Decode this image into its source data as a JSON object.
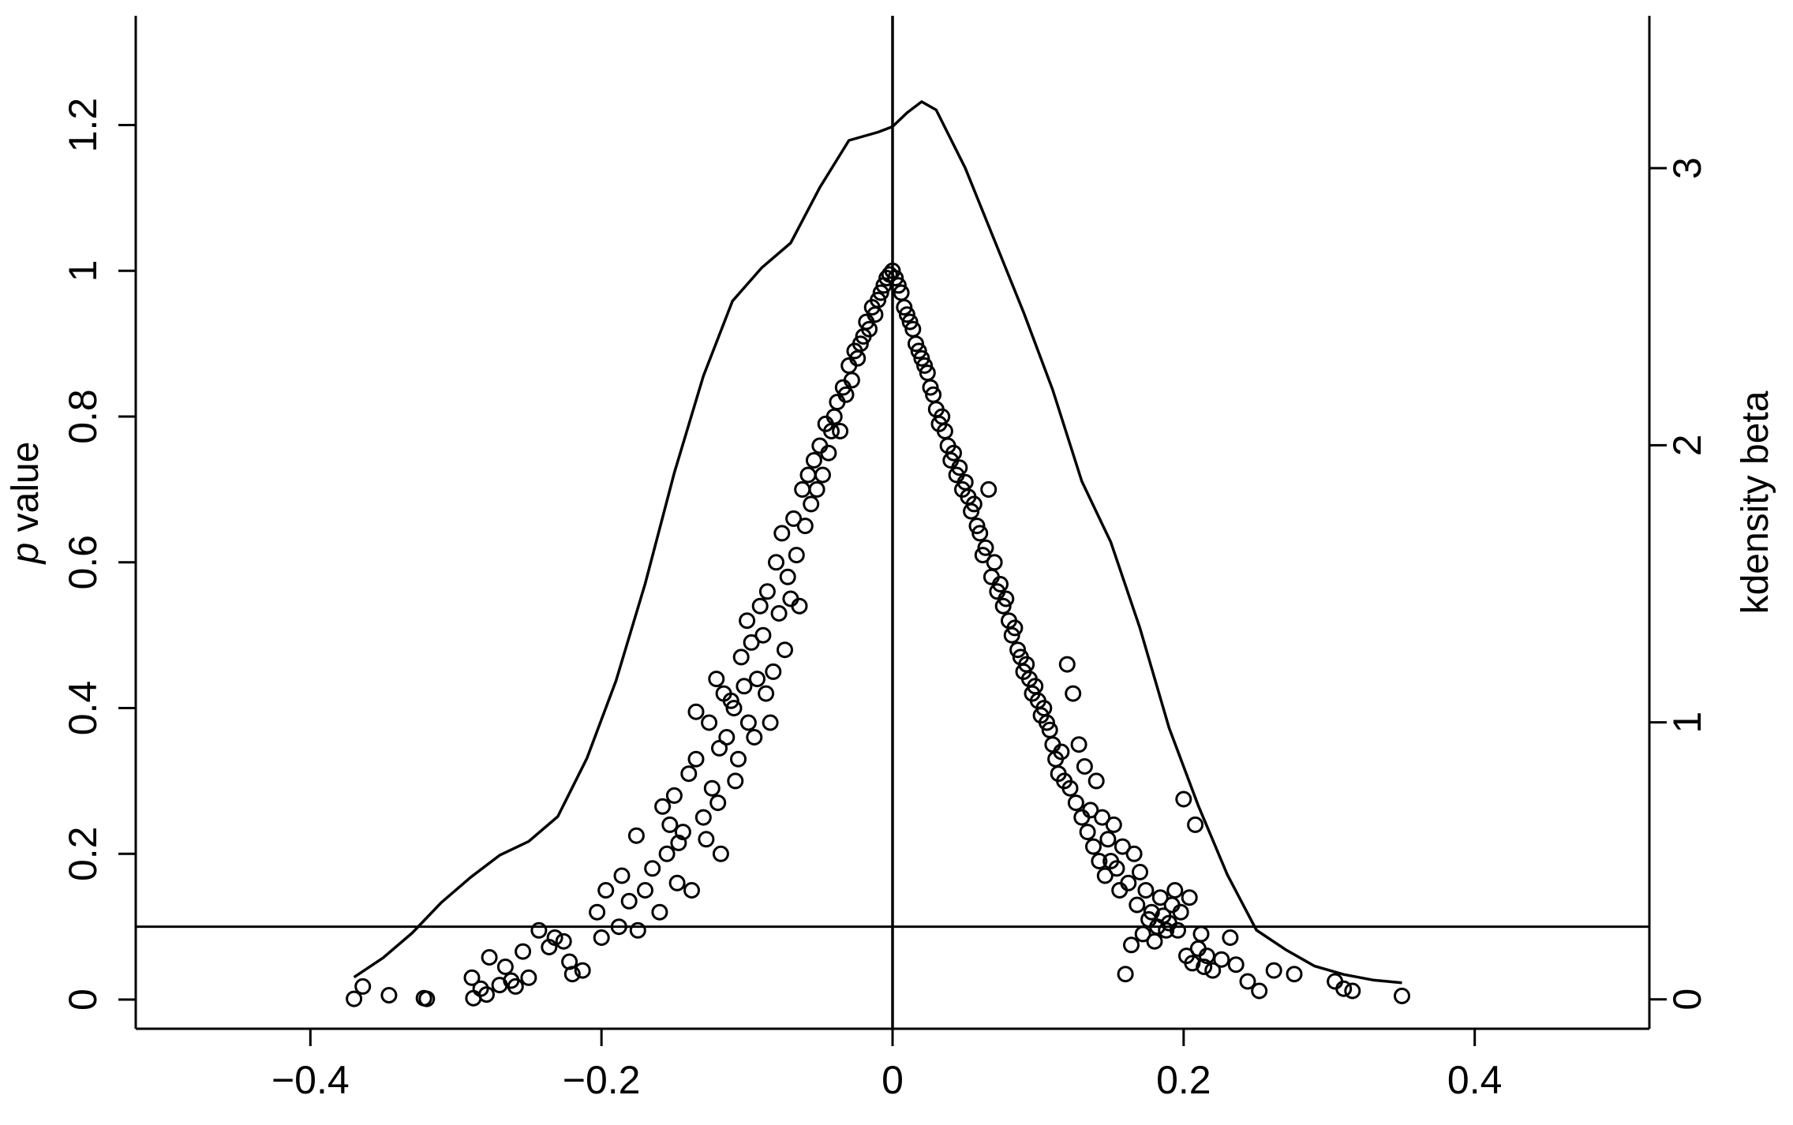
{
  "chart_data": {
    "type": "scatter",
    "title": "",
    "xlabel": "",
    "ylabel_italic": "p",
    "ylabel_rest": " value",
    "y2label": "kdensity beta",
    "xlim": [
      -0.52,
      0.52
    ],
    "ylim": [
      -0.04,
      1.35
    ],
    "y2lim": [
      -0.106,
      3.55
    ],
    "x_ticks": [
      {
        "value": -0.4,
        "label": "−0.4"
      },
      {
        "value": -0.2,
        "label": "−0.2"
      },
      {
        "value": 0,
        "label": "0"
      },
      {
        "value": 0.2,
        "label": "0.2"
      },
      {
        "value": 0.4,
        "label": "0.4"
      }
    ],
    "y_ticks": [
      {
        "value": 0,
        "label": "0"
      },
      {
        "value": 0.2,
        "label": "0.2"
      },
      {
        "value": 0.4,
        "label": "0.4"
      },
      {
        "value": 0.6,
        "label": "0.6"
      },
      {
        "value": 0.8,
        "label": "0.8"
      },
      {
        "value": 1,
        "label": "1"
      },
      {
        "value": 1.2,
        "label": "1.2"
      }
    ],
    "y2_ticks": [
      {
        "value": 0,
        "label": "0"
      },
      {
        "value": 1,
        "label": "1"
      },
      {
        "value": 2,
        "label": "2"
      },
      {
        "value": 3,
        "label": "3"
      }
    ],
    "reference_lines": {
      "vertical_x": 0,
      "horizontal_y": 0.1
    },
    "grid": false,
    "legend": "none",
    "colors": {
      "ink": "#000000",
      "background": "#ffffff"
    },
    "series": [
      {
        "type": "scatter",
        "axis": "left",
        "marker": "hollow-circle",
        "points": [
          [
            -0.37,
            0.001
          ],
          [
            -0.364,
            0.018
          ],
          [
            -0.346,
            0.006
          ],
          [
            -0.322,
            0.002
          ],
          [
            -0.32,
            0.001
          ],
          [
            -0.289,
            0.03
          ],
          [
            -0.288,
            0.002
          ],
          [
            -0.283,
            0.015
          ],
          [
            -0.279,
            0.007
          ],
          [
            -0.277,
            0.058
          ],
          [
            -0.27,
            0.02
          ],
          [
            -0.266,
            0.045
          ],
          [
            -0.262,
            0.026
          ],
          [
            -0.259,
            0.018
          ],
          [
            -0.254,
            0.066
          ],
          [
            -0.25,
            0.03
          ],
          [
            -0.243,
            0.095
          ],
          [
            -0.236,
            0.072
          ],
          [
            -0.232,
            0.085
          ],
          [
            -0.226,
            0.08
          ],
          [
            -0.222,
            0.052
          ],
          [
            -0.22,
            0.035
          ],
          [
            -0.213,
            0.04
          ],
          [
            -0.203,
            0.12
          ],
          [
            -0.2,
            0.085
          ],
          [
            -0.197,
            0.15
          ],
          [
            -0.188,
            0.1
          ],
          [
            -0.186,
            0.17
          ],
          [
            -0.181,
            0.135
          ],
          [
            -0.175,
            0.095
          ],
          [
            -0.176,
            0.225
          ],
          [
            -0.17,
            0.15
          ],
          [
            -0.165,
            0.18
          ],
          [
            -0.16,
            0.12
          ],
          [
            -0.158,
            0.265
          ],
          [
            -0.155,
            0.2
          ],
          [
            -0.153,
            0.24
          ],
          [
            -0.15,
            0.28
          ],
          [
            -0.148,
            0.16
          ],
          [
            -0.147,
            0.215
          ],
          [
            -0.144,
            0.23
          ],
          [
            -0.14,
            0.31
          ],
          [
            -0.138,
            0.15
          ],
          [
            -0.135,
            0.33
          ],
          [
            -0.135,
            0.395
          ],
          [
            -0.13,
            0.25
          ],
          [
            -0.128,
            0.22
          ],
          [
            -0.126,
            0.38
          ],
          [
            -0.124,
            0.29
          ],
          [
            -0.121,
            0.44
          ],
          [
            -0.12,
            0.27
          ],
          [
            -0.119,
            0.345
          ],
          [
            -0.118,
            0.2
          ],
          [
            -0.116,
            0.42
          ],
          [
            -0.114,
            0.36
          ],
          [
            -0.111,
            0.41
          ],
          [
            -0.109,
            0.4
          ],
          [
            -0.108,
            0.3
          ],
          [
            -0.106,
            0.33
          ],
          [
            -0.104,
            0.47
          ],
          [
            -0.102,
            0.43
          ],
          [
            -0.1,
            0.52
          ],
          [
            -0.099,
            0.38
          ],
          [
            -0.097,
            0.49
          ],
          [
            -0.095,
            0.36
          ],
          [
            -0.093,
            0.44
          ],
          [
            -0.091,
            0.54
          ],
          [
            -0.089,
            0.5
          ],
          [
            -0.087,
            0.42
          ],
          [
            -0.086,
            0.56
          ],
          [
            -0.084,
            0.38
          ],
          [
            -0.082,
            0.45
          ],
          [
            -0.08,
            0.6
          ],
          [
            -0.078,
            0.53
          ],
          [
            -0.076,
            0.64
          ],
          [
            -0.074,
            0.48
          ],
          [
            -0.072,
            0.58
          ],
          [
            -0.07,
            0.55
          ],
          [
            -0.068,
            0.66
          ],
          [
            -0.066,
            0.61
          ],
          [
            -0.064,
            0.54
          ],
          [
            -0.062,
            0.7
          ],
          [
            -0.06,
            0.65
          ],
          [
            -0.058,
            0.72
          ],
          [
            -0.056,
            0.68
          ],
          [
            -0.054,
            0.74
          ],
          [
            -0.052,
            0.7
          ],
          [
            -0.05,
            0.76
          ],
          [
            -0.048,
            0.72
          ],
          [
            -0.046,
            0.79
          ],
          [
            -0.044,
            0.75
          ],
          [
            -0.042,
            0.78
          ],
          [
            -0.04,
            0.8
          ],
          [
            -0.038,
            0.82
          ],
          [
            -0.036,
            0.78
          ],
          [
            -0.034,
            0.84
          ],
          [
            -0.032,
            0.83
          ],
          [
            -0.03,
            0.87
          ],
          [
            -0.028,
            0.85
          ],
          [
            -0.026,
            0.89
          ],
          [
            -0.024,
            0.88
          ],
          [
            -0.022,
            0.9
          ],
          [
            -0.02,
            0.91
          ],
          [
            -0.018,
            0.93
          ],
          [
            -0.016,
            0.92
          ],
          [
            -0.014,
            0.95
          ],
          [
            -0.012,
            0.94
          ],
          [
            -0.01,
            0.96
          ],
          [
            -0.008,
            0.97
          ],
          [
            -0.006,
            0.98
          ],
          [
            -0.004,
            0.99
          ],
          [
            -0.002,
            0.995
          ],
          [
            0.0,
            1.0
          ],
          [
            0.002,
            0.99
          ],
          [
            0.004,
            0.98
          ],
          [
            0.006,
            0.97
          ],
          [
            0.008,
            0.95
          ],
          [
            0.01,
            0.94
          ],
          [
            0.012,
            0.93
          ],
          [
            0.014,
            0.92
          ],
          [
            0.016,
            0.9
          ],
          [
            0.018,
            0.89
          ],
          [
            0.02,
            0.88
          ],
          [
            0.022,
            0.87
          ],
          [
            0.024,
            0.86
          ],
          [
            0.026,
            0.84
          ],
          [
            0.028,
            0.83
          ],
          [
            0.03,
            0.81
          ],
          [
            0.032,
            0.79
          ],
          [
            0.034,
            0.8
          ],
          [
            0.036,
            0.78
          ],
          [
            0.038,
            0.76
          ],
          [
            0.04,
            0.74
          ],
          [
            0.042,
            0.75
          ],
          [
            0.044,
            0.72
          ],
          [
            0.046,
            0.73
          ],
          [
            0.048,
            0.7
          ],
          [
            0.05,
            0.71
          ],
          [
            0.052,
            0.69
          ],
          [
            0.054,
            0.67
          ],
          [
            0.056,
            0.68
          ],
          [
            0.058,
            0.65
          ],
          [
            0.06,
            0.64
          ],
          [
            0.062,
            0.61
          ],
          [
            0.064,
            0.62
          ],
          [
            0.066,
            0.7
          ],
          [
            0.068,
            0.58
          ],
          [
            0.07,
            0.6
          ],
          [
            0.072,
            0.56
          ],
          [
            0.074,
            0.57
          ],
          [
            0.076,
            0.54
          ],
          [
            0.078,
            0.55
          ],
          [
            0.08,
            0.52
          ],
          [
            0.082,
            0.5
          ],
          [
            0.084,
            0.51
          ],
          [
            0.086,
            0.48
          ],
          [
            0.088,
            0.47
          ],
          [
            0.09,
            0.45
          ],
          [
            0.092,
            0.46
          ],
          [
            0.094,
            0.44
          ],
          [
            0.096,
            0.42
          ],
          [
            0.098,
            0.43
          ],
          [
            0.1,
            0.41
          ],
          [
            0.102,
            0.39
          ],
          [
            0.104,
            0.4
          ],
          [
            0.106,
            0.38
          ],
          [
            0.108,
            0.37
          ],
          [
            0.11,
            0.35
          ],
          [
            0.112,
            0.33
          ],
          [
            0.114,
            0.31
          ],
          [
            0.116,
            0.34
          ],
          [
            0.118,
            0.3
          ],
          [
            0.12,
            0.46
          ],
          [
            0.122,
            0.29
          ],
          [
            0.124,
            0.42
          ],
          [
            0.126,
            0.27
          ],
          [
            0.128,
            0.35
          ],
          [
            0.13,
            0.25
          ],
          [
            0.132,
            0.32
          ],
          [
            0.134,
            0.23
          ],
          [
            0.136,
            0.26
          ],
          [
            0.138,
            0.21
          ],
          [
            0.14,
            0.3
          ],
          [
            0.142,
            0.19
          ],
          [
            0.144,
            0.25
          ],
          [
            0.146,
            0.17
          ],
          [
            0.148,
            0.22
          ],
          [
            0.15,
            0.19
          ],
          [
            0.152,
            0.24
          ],
          [
            0.154,
            0.18
          ],
          [
            0.156,
            0.15
          ],
          [
            0.158,
            0.21
          ],
          [
            0.16,
            0.035
          ],
          [
            0.162,
            0.16
          ],
          [
            0.164,
            0.075
          ],
          [
            0.166,
            0.2
          ],
          [
            0.168,
            0.13
          ],
          [
            0.17,
            0.175
          ],
          [
            0.172,
            0.09
          ],
          [
            0.174,
            0.15
          ],
          [
            0.176,
            0.11
          ],
          [
            0.178,
            0.12
          ],
          [
            0.18,
            0.08
          ],
          [
            0.182,
            0.1
          ],
          [
            0.184,
            0.14
          ],
          [
            0.186,
            0.115
          ],
          [
            0.188,
            0.095
          ],
          [
            0.19,
            0.105
          ],
          [
            0.192,
            0.13
          ],
          [
            0.194,
            0.15
          ],
          [
            0.196,
            0.095
          ],
          [
            0.198,
            0.12
          ],
          [
            0.2,
            0.275
          ],
          [
            0.202,
            0.06
          ],
          [
            0.204,
            0.14
          ],
          [
            0.206,
            0.05
          ],
          [
            0.208,
            0.24
          ],
          [
            0.21,
            0.07
          ],
          [
            0.212,
            0.09
          ],
          [
            0.214,
            0.045
          ],
          [
            0.216,
            0.06
          ],
          [
            0.22,
            0.04
          ],
          [
            0.226,
            0.055
          ],
          [
            0.232,
            0.085
          ],
          [
            0.236,
            0.048
          ],
          [
            0.244,
            0.025
          ],
          [
            0.252,
            0.012
          ],
          [
            0.262,
            0.04
          ],
          [
            0.276,
            0.035
          ],
          [
            0.304,
            0.025
          ],
          [
            0.31,
            0.015
          ],
          [
            0.316,
            0.012
          ],
          [
            0.35,
            0.005
          ]
        ]
      },
      {
        "type": "line",
        "axis": "right",
        "name": "",
        "x": [
          -0.37,
          -0.35,
          -0.33,
          -0.31,
          -0.29,
          -0.27,
          -0.25,
          -0.23,
          -0.21,
          -0.19,
          -0.17,
          -0.15,
          -0.13,
          -0.11,
          -0.09,
          -0.07,
          -0.05,
          -0.03,
          -0.01,
          0.0,
          0.01,
          0.02,
          0.03,
          0.05,
          0.07,
          0.09,
          0.11,
          0.13,
          0.15,
          0.17,
          0.19,
          0.21,
          0.23,
          0.25,
          0.27,
          0.29,
          0.31,
          0.33,
          0.35
        ],
        "values": [
          0.08,
          0.15,
          0.24,
          0.35,
          0.44,
          0.52,
          0.57,
          0.66,
          0.87,
          1.15,
          1.5,
          1.9,
          2.25,
          2.52,
          2.64,
          2.73,
          2.93,
          3.1,
          3.13,
          3.15,
          3.2,
          3.24,
          3.21,
          3.0,
          2.74,
          2.48,
          2.2,
          1.87,
          1.65,
          1.34,
          0.98,
          0.7,
          0.45,
          0.25,
          0.18,
          0.12,
          0.09,
          0.07,
          0.06
        ]
      }
    ]
  }
}
